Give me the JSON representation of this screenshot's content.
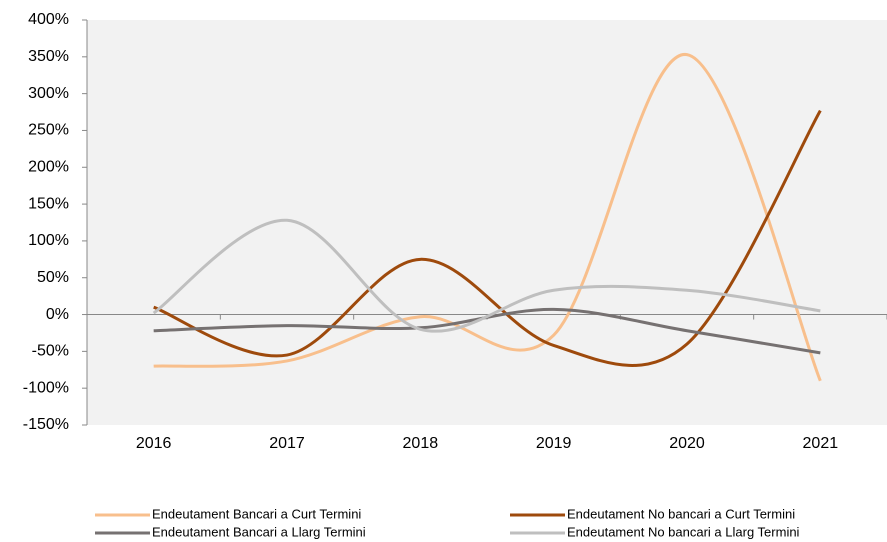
{
  "chart_data": {
    "type": "line",
    "categories": [
      "2016",
      "2017",
      "2018",
      "2019",
      "2020",
      "2021"
    ],
    "series": [
      {
        "name": "Endeutament Bancari a Curt Termini",
        "color": "#f8bf8c",
        "values": [
          -70,
          -63,
          -3,
          -28,
          353,
          -90
        ]
      },
      {
        "name": "Endeutament No bancari a Curt Termini",
        "color": "#9e4a0c",
        "values": [
          10,
          -55,
          75,
          -42,
          -40,
          277
        ]
      },
      {
        "name": "Endeutament Bancari a Llarg Termini",
        "color": "#767171",
        "values": [
          -22,
          -15,
          -18,
          7,
          -22,
          -52
        ]
      },
      {
        "name": "Endeutament No bancari a Llarg Termini",
        "color": "#bfbfbf",
        "values": [
          2,
          128,
          -20,
          33,
          33,
          5
        ]
      }
    ],
    "ylim": [
      -150,
      400
    ],
    "yticks": [
      {
        "value": -150,
        "label": "-150%"
      },
      {
        "value": -100,
        "label": "-100%"
      },
      {
        "value": -50,
        "label": "-50%"
      },
      {
        "value": 0,
        "label": "0%"
      },
      {
        "value": 50,
        "label": "50%"
      },
      {
        "value": 100,
        "label": "100%"
      },
      {
        "value": 150,
        "label": "150%"
      },
      {
        "value": 200,
        "label": "200%"
      },
      {
        "value": 250,
        "label": "250%"
      },
      {
        "value": 300,
        "label": "300%"
      },
      {
        "value": 350,
        "label": "350%"
      },
      {
        "value": 400,
        "label": "400%"
      }
    ],
    "smooth": true
  }
}
